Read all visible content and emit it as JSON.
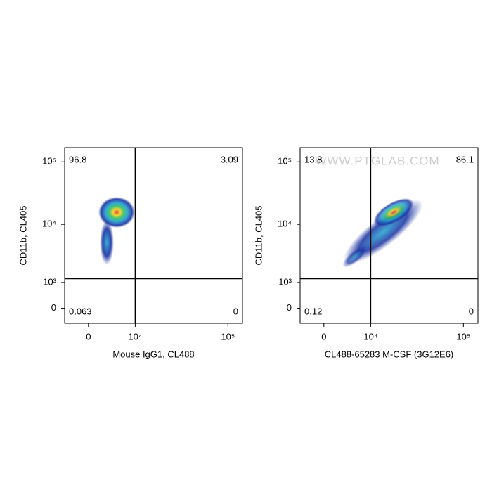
{
  "chart_data": [
    {
      "type": "flow-density",
      "xscale": "biexponential",
      "yscale": "biexponential",
      "x_label": "Mouse IgG1, CL488",
      "y_label": "CD11b, CL405",
      "xlim": [
        -4400,
        141000
      ],
      "ylim": [
        -530,
        169000
      ],
      "xticks": [
        0,
        {
          "value": 10000,
          "label": "10⁴"
        },
        {
          "value": 100000,
          "label": "10⁵"
        }
      ],
      "yticks": [
        0,
        {
          "value": 1000,
          "label": "10³"
        },
        {
          "value": 10000,
          "label": "10⁴"
        },
        {
          "value": 100000,
          "label": "10⁵"
        }
      ],
      "gate": {
        "x": 10000,
        "y": 1200
      },
      "quadrants": [
        96.8,
        3.09,
        0.063,
        0
      ]
    },
    {
      "type": "flow-density",
      "xscale": "biexponential",
      "yscale": "biexponential",
      "x_label": "CL488-65283 M-CSF (3G12E6)",
      "y_label": "CD11b, CL405",
      "watermark": "WWW.PTGLAB.COM",
      "xlim": [
        -4400,
        141000
      ],
      "ylim": [
        -530,
        169000
      ],
      "xticks": [
        0,
        {
          "value": 10000,
          "label": "10⁴"
        },
        {
          "value": 100000,
          "label": "10⁵"
        }
      ],
      "yticks": [
        0,
        {
          "value": 1000,
          "label": "10³"
        },
        {
          "value": 10000,
          "label": "10⁴"
        },
        {
          "value": 100000,
          "label": "10⁵"
        }
      ],
      "gate": {
        "x": 10000,
        "y": 1200
      },
      "quadrants": [
        13.8,
        86.1,
        0.12,
        0
      ]
    }
  ]
}
